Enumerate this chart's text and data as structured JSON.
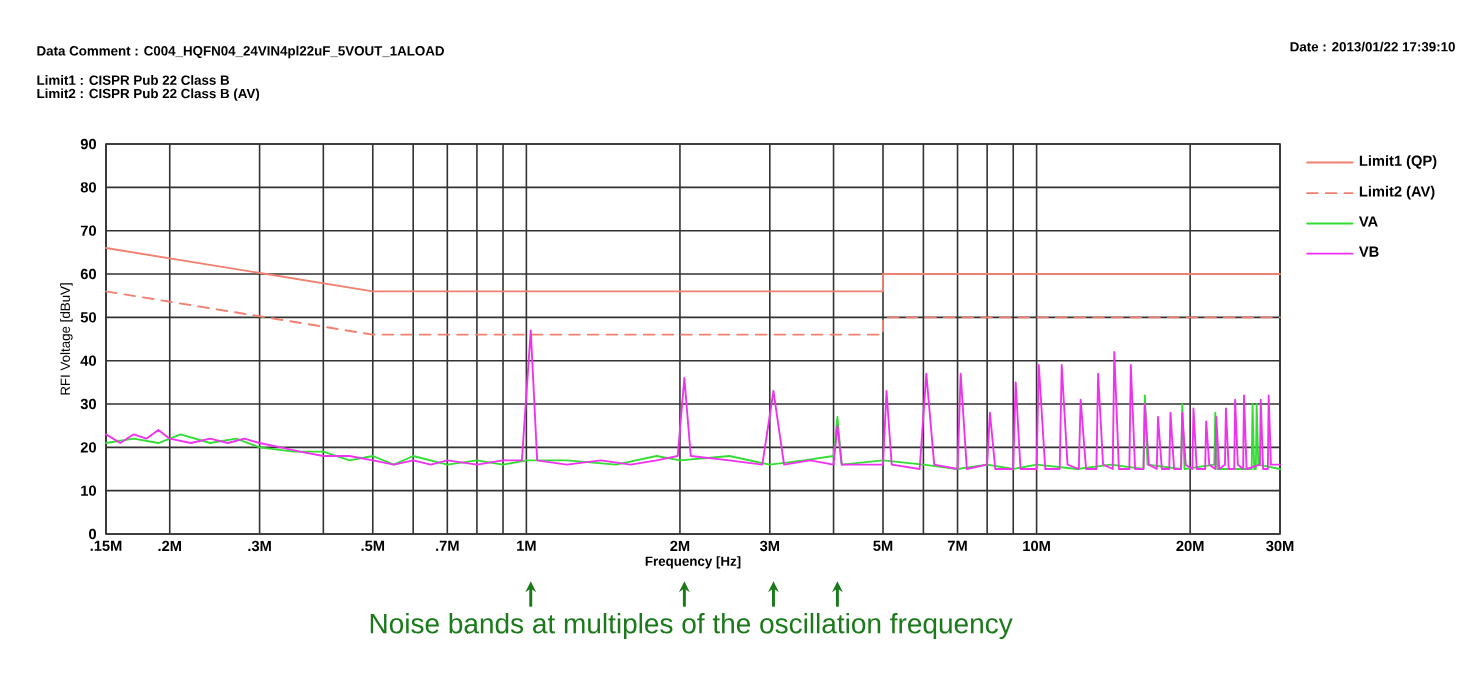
{
  "chart_data": {
    "type": "line",
    "annotations": [
      "Data Comment : C004_HQFN04_24VIN4pl22uF_5VOUT_1ALOAD",
      "Date : 2013/01/22 17:39:10",
      "Limit1 : CISPR Pub 22 Class B",
      "Limit2 : CISPR Pub 22 Class B (AV)",
      "Noise bands at multiples of the oscillation frequency"
    ],
    "xlabel": "Frequency [Hz]",
    "ylabel": "RFI Voltage [dBuV]",
    "log": "x",
    "grid": true,
    "legend": "right",
    "xlim": [
      0.15,
      30
    ],
    "ylim": [
      0,
      90
    ],
    "xticks": [
      {
        "value": 0.15,
        "label": ".15M"
      },
      {
        "value": 0.2,
        "label": ".2M"
      },
      {
        "value": 0.3,
        "label": ".3M"
      },
      {
        "value": 0.4,
        "label": null
      },
      {
        "value": 0.5,
        "label": ".5M"
      },
      {
        "value": 0.6,
        "label": null
      },
      {
        "value": 0.7,
        "label": ".7M"
      },
      {
        "value": 0.8,
        "label": null
      },
      {
        "value": 0.9,
        "label": null
      },
      {
        "value": 1,
        "label": "1M"
      },
      {
        "value": 2,
        "label": "2M"
      },
      {
        "value": 3,
        "label": "3M"
      },
      {
        "value": 4,
        "label": null
      },
      {
        "value": 5,
        "label": "5M"
      },
      {
        "value": 6,
        "label": null
      },
      {
        "value": 7,
        "label": "7M"
      },
      {
        "value": 8,
        "label": null
      },
      {
        "value": 9,
        "label": null
      },
      {
        "value": 10,
        "label": "10M"
      },
      {
        "value": 20,
        "label": "20M"
      },
      {
        "value": 30,
        "label": "30M"
      }
    ],
    "yticks": [
      0,
      10,
      20,
      30,
      40,
      50,
      60,
      70,
      80,
      90
    ],
    "series": [
      {
        "name": "Limit1 (QP)",
        "color": "#f08070",
        "line_style": "solid",
        "x": [
          0.15,
          0.5,
          5,
          5,
          30
        ],
        "values": [
          66,
          56,
          56,
          60,
          60
        ]
      },
      {
        "name": "Limit2 (AV)",
        "color": "#f08070",
        "line_style": "dashed",
        "x": [
          0.15,
          0.5,
          5,
          5,
          30
        ],
        "values": [
          56,
          46,
          46,
          50,
          50
        ]
      },
      {
        "name": "VA",
        "color": "#33dd33",
        "line_style": "solid",
        "x": [
          0.15,
          0.17,
          0.19,
          0.21,
          0.24,
          0.27,
          0.3,
          0.35,
          0.4,
          0.45,
          0.5,
          0.55,
          0.6,
          0.7,
          0.8,
          0.9,
          1.0,
          1.2,
          1.5,
          1.8,
          2.0,
          2.5,
          3.0,
          3.5,
          4.0,
          4.07,
          4.15,
          5,
          6,
          7,
          8,
          9,
          10,
          12,
          14,
          16.2,
          16.3,
          16.5,
          19.2,
          19.3,
          19.5,
          22.3,
          22.4,
          22.6,
          26.4,
          26.5,
          26.7,
          26.9,
          27,
          27.2,
          30
        ],
        "values": [
          21,
          22,
          21,
          23,
          21,
          22,
          20,
          19,
          19,
          17,
          18,
          16,
          18,
          16,
          17,
          16,
          17,
          17,
          16,
          18,
          17,
          18,
          16,
          17,
          18,
          27,
          16,
          17,
          16,
          15,
          16,
          15,
          16,
          15,
          16,
          15,
          32,
          16,
          15,
          30,
          15,
          16,
          28,
          15,
          15,
          30,
          15,
          15,
          30,
          16,
          15
        ]
      },
      {
        "name": "VB",
        "color": "#ee33ee",
        "line_style": "solid",
        "x": [
          0.15,
          0.16,
          0.17,
          0.18,
          0.19,
          0.2,
          0.22,
          0.24,
          0.26,
          0.28,
          0.3,
          0.33,
          0.36,
          0.4,
          0.45,
          0.5,
          0.55,
          0.6,
          0.65,
          0.7,
          0.8,
          0.9,
          0.98,
          1.02,
          1.05,
          1.2,
          1.4,
          1.6,
          1.8,
          1.98,
          2.04,
          2.1,
          2.5,
          2.9,
          3.05,
          3.2,
          3.6,
          4.0,
          4.07,
          4.15,
          4.6,
          5.0,
          5.08,
          5.2,
          5.9,
          6.08,
          6.3,
          7.0,
          7.1,
          7.3,
          8.0,
          8.1,
          8.3,
          9.0,
          9.1,
          9.3,
          10.0,
          10.1,
          10.4,
          11.1,
          11.2,
          11.5,
          12.1,
          12.2,
          12.5,
          13.1,
          13.2,
          13.5,
          14.1,
          14.2,
          14.5,
          15.2,
          15.3,
          15.6,
          16.2,
          16.3,
          16.6,
          17.2,
          17.3,
          17.6,
          18.2,
          18.3,
          18.6,
          19.2,
          19.3,
          19.6,
          20.2,
          20.3,
          20.6,
          21.4,
          21.5,
          21.8,
          22.4,
          22.5,
          22.8,
          23.4,
          23.5,
          23.8,
          24.4,
          24.5,
          24.8,
          25.4,
          25.5,
          25.8,
          27.4,
          27.5,
          27.8,
          28.4,
          28.5,
          28.8,
          30
        ],
        "values": [
          23,
          21,
          23,
          22,
          24,
          22,
          21,
          22,
          21,
          22,
          21,
          20,
          19,
          18,
          18,
          17,
          16,
          17,
          16,
          17,
          16,
          17,
          17,
          47,
          17,
          16,
          17,
          16,
          17,
          18,
          36,
          18,
          17,
          16,
          33,
          16,
          17,
          16,
          25,
          16,
          16,
          16,
          33,
          16,
          15,
          37,
          16,
          15,
          37,
          15,
          16,
          28,
          15,
          15,
          35,
          15,
          15,
          39,
          15,
          15,
          39,
          16,
          15,
          31,
          15,
          15,
          37,
          16,
          15,
          42,
          15,
          15,
          39,
          15,
          15,
          30,
          16,
          15,
          27,
          15,
          15,
          28,
          15,
          15,
          28,
          16,
          15,
          29,
          15,
          15,
          26,
          16,
          15,
          27,
          15,
          16,
          29,
          15,
          15,
          31,
          16,
          15,
          32,
          15,
          16,
          31,
          15,
          15,
          32,
          16,
          16
        ]
      }
    ]
  }
}
